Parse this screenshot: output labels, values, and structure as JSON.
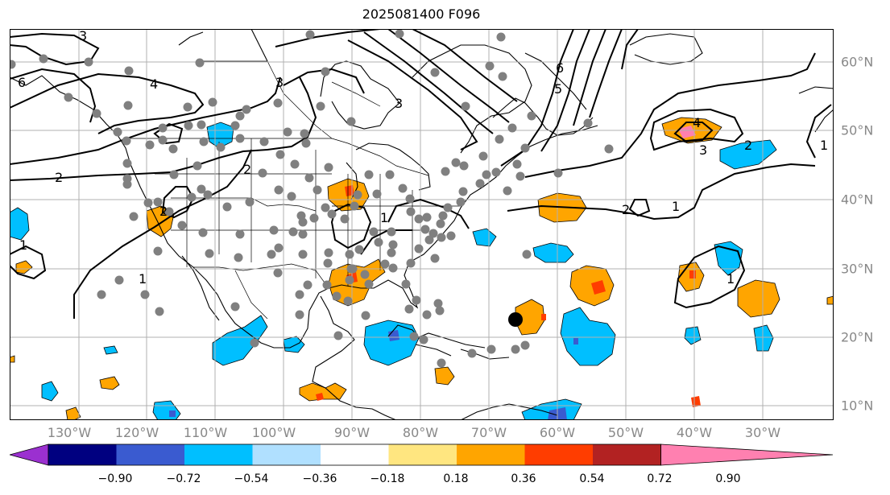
{
  "title": "2025081400 F096",
  "lon_labels": [
    "130°W",
    "120°W",
    "110°W",
    "100°W",
    "90°W",
    "80°W",
    "70°W",
    "60°W",
    "50°W",
    "40°W",
    "30°W"
  ],
  "lat_labels": [
    "60°N",
    "50°N",
    "40°N",
    "30°N",
    "20°N",
    "10°N"
  ],
  "colorbar": {
    "colors": [
      "#9b30d0",
      "#000080",
      "#3a5bd0",
      "#00bfff",
      "#b0e0ff",
      "#ffffff",
      "#ffe680",
      "#ffa500",
      "#ff3d00",
      "#b22222",
      "#ff80b0"
    ],
    "tick_labels": [
      "−0.90",
      "−0.72",
      "−0.54",
      "−0.36",
      "−0.18",
      "0.18",
      "0.36",
      "0.54",
      "0.72",
      "0.90"
    ]
  },
  "contour_labels": [
    "3",
    "6",
    "4",
    "2",
    "1",
    "6",
    "5",
    "3",
    "2",
    "1",
    "3",
    "1",
    "2",
    "4",
    "3",
    "2",
    "1",
    "2",
    "1",
    "1"
  ],
  "colors": {
    "station": "#808080",
    "marker": "#000000",
    "coast": "#000000",
    "grid": "#b0b0b0"
  }
}
